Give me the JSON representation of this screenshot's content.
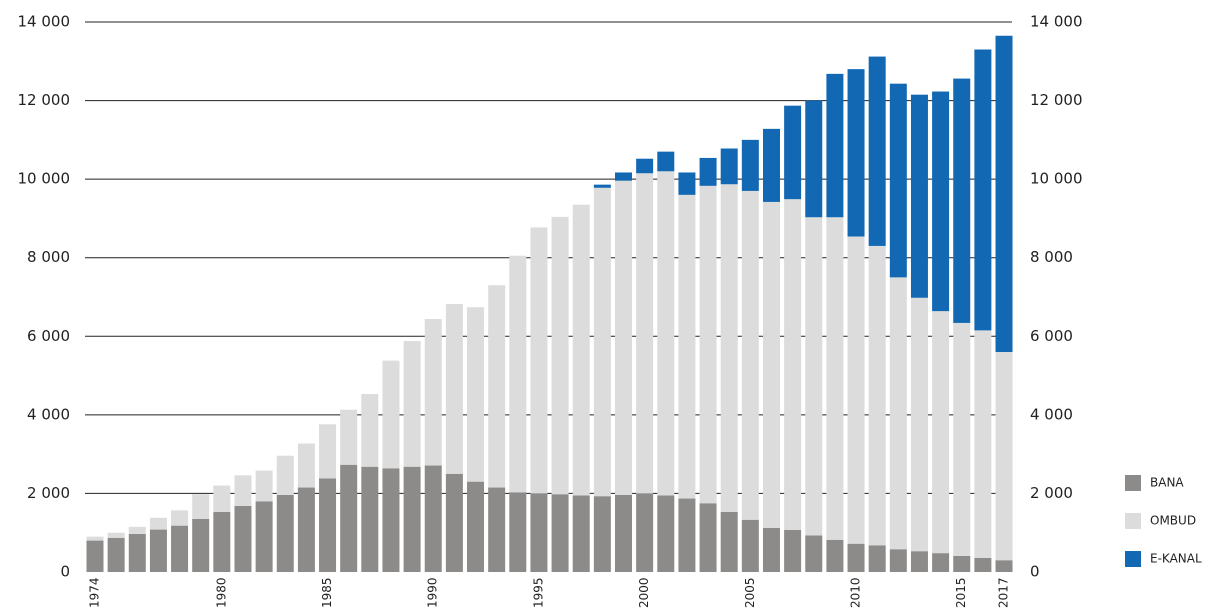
{
  "chart_data": {
    "type": "bar",
    "stacked": true,
    "categories": [
      "1974",
      null,
      null,
      null,
      null,
      null,
      "1980",
      null,
      null,
      null,
      null,
      "1985",
      null,
      null,
      null,
      null,
      "1990",
      null,
      null,
      null,
      null,
      "1995",
      null,
      null,
      null,
      null,
      "2000",
      null,
      null,
      null,
      null,
      "2005",
      null,
      null,
      null,
      null,
      "2010",
      null,
      null,
      null,
      null,
      "2015",
      null,
      "2017"
    ],
    "series": [
      {
        "name": "BANA",
        "color": "#8c8b89",
        "values": [
          800,
          870,
          970,
          1080,
          1180,
          1350,
          1530,
          1680,
          1800,
          1960,
          2150,
          2380,
          2730,
          2680,
          2640,
          2680,
          2710,
          2500,
          2300,
          2150,
          2030,
          2000,
          1980,
          1950,
          1930,
          1960,
          2000,
          1950,
          1870,
          1750,
          1530,
          1330,
          1120,
          1070,
          930,
          820,
          720,
          680,
          580,
          530,
          480,
          410,
          360,
          300
        ]
      },
      {
        "name": "OMBUD",
        "color": "#dcdcdc",
        "values": [
          100,
          130,
          180,
          300,
          390,
          630,
          670,
          780,
          780,
          1000,
          1120,
          1380,
          1400,
          1850,
          2740,
          3200,
          3730,
          4320,
          4440,
          5150,
          6020,
          6770,
          7060,
          7400,
          7850,
          8000,
          8150,
          8250,
          7730,
          8080,
          8340,
          8370,
          8300,
          8420,
          8100,
          8210,
          7820,
          7620,
          6920,
          6450,
          6160,
          5930,
          5790,
          5300
        ]
      },
      {
        "name": "E-KANAL",
        "color": "#1268b3",
        "values": [
          0,
          0,
          0,
          0,
          0,
          0,
          0,
          0,
          0,
          0,
          0,
          0,
          0,
          0,
          0,
          0,
          0,
          0,
          0,
          0,
          0,
          0,
          0,
          0,
          80,
          210,
          370,
          500,
          570,
          710,
          910,
          1300,
          1860,
          2380,
          2970,
          3650,
          4260,
          4820,
          4930,
          5170,
          5590,
          6220,
          7150,
          8050
        ]
      }
    ],
    "ylim": [
      0,
      14000
    ],
    "yticks": [
      0,
      {
        "value": 2000,
        "label": "2 000"
      },
      {
        "value": 4000,
        "label": "4 000"
      },
      {
        "value": 6000,
        "label": "6 000"
      },
      {
        "value": 8000,
        "label": "8 000"
      },
      {
        "value": 10000,
        "label": "10 000"
      },
      {
        "value": 12000,
        "label": "12 000"
      },
      {
        "value": 14000,
        "label": "14 000"
      }
    ],
    "y2lim": [
      0,
      14000
    ],
    "y2ticks": [
      0,
      {
        "value": 2000,
        "label": "2 000"
      },
      {
        "value": 4000,
        "label": "4 000"
      },
      {
        "value": 6000,
        "label": "6 000"
      },
      {
        "value": 8000,
        "label": "8 000"
      },
      {
        "value": 10000,
        "label": "10 000"
      },
      {
        "value": 12000,
        "label": "12 000"
      },
      {
        "value": 14000,
        "label": "14 000"
      }
    ],
    "grid": true,
    "legend": "right"
  }
}
